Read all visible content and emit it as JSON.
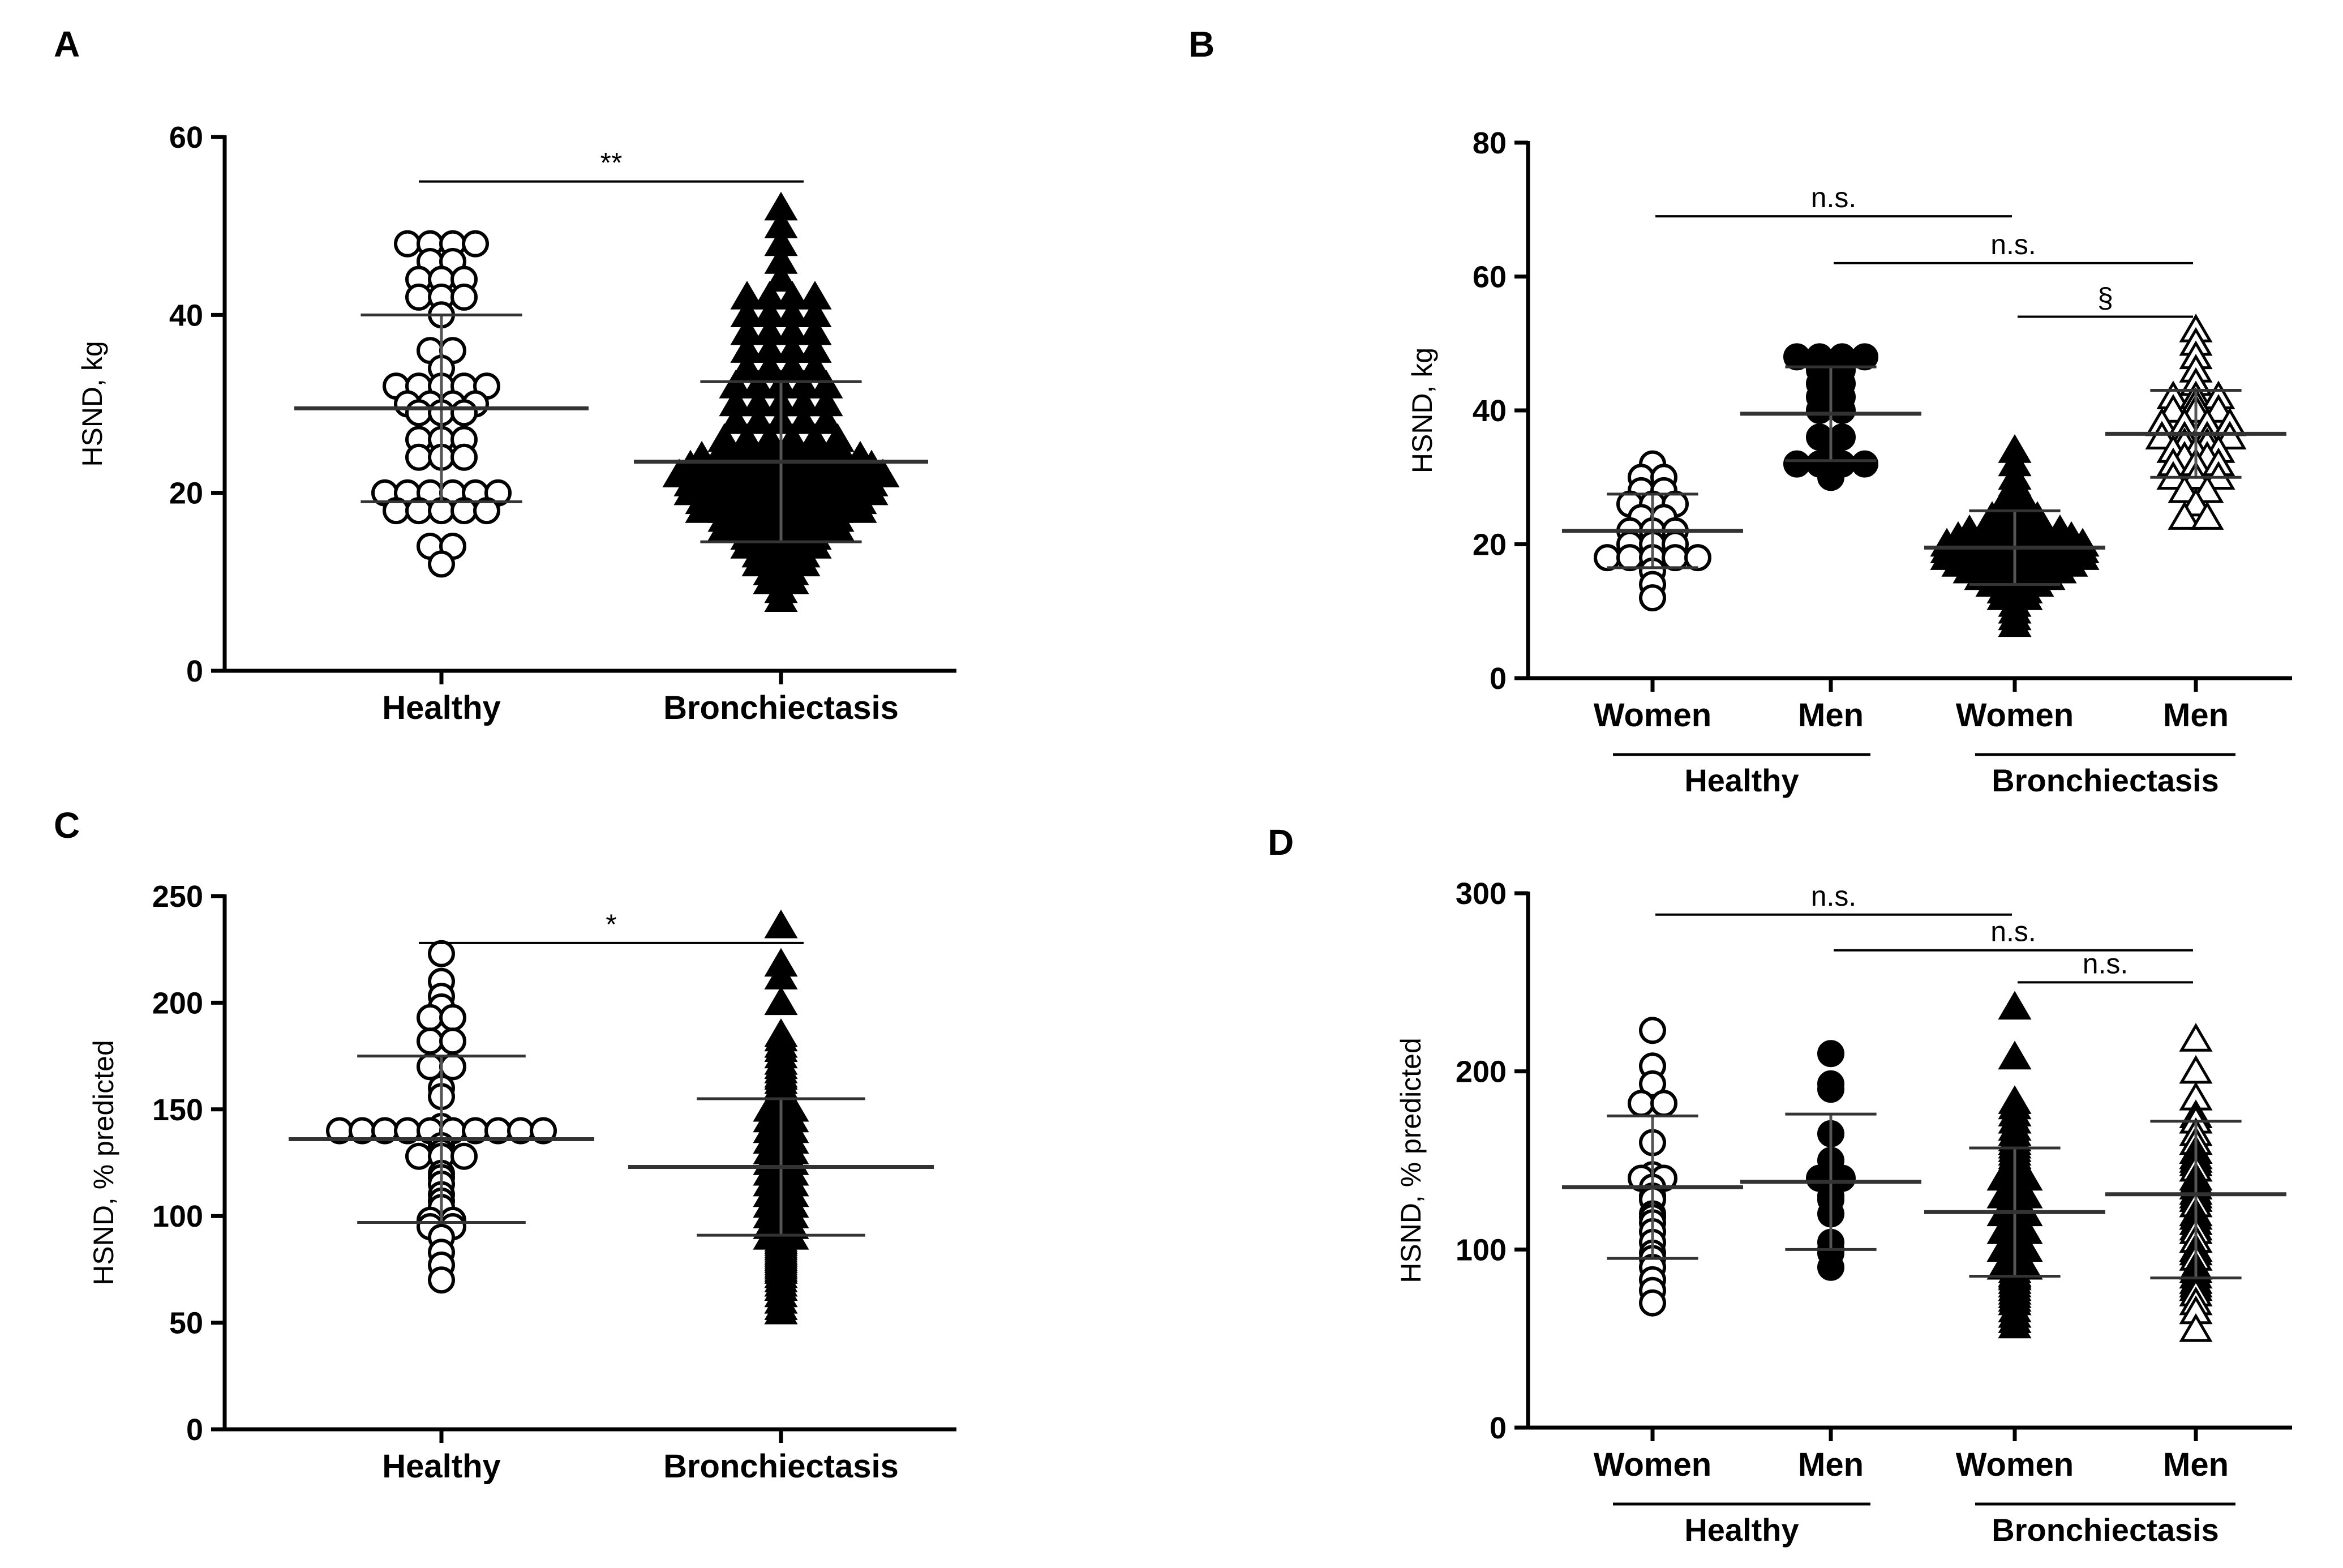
{
  "chart_data": [
    {
      "panel": "A",
      "type": "scatter",
      "subtype": "dot-plot",
      "ylabel": "HSND, kg",
      "ylim": [
        0,
        60
      ],
      "yticks": [
        0,
        20,
        40,
        60
      ],
      "categories": [
        "Healthy",
        "Bronchiectasis"
      ],
      "groups": [
        {
          "name": "Healthy",
          "marker": "circle-open",
          "values": [
            48,
            48,
            48,
            48,
            46,
            46,
            44,
            44,
            44,
            42,
            42,
            42,
            40,
            36,
            36,
            34,
            32,
            32,
            32,
            32,
            32,
            30,
            30,
            30,
            30,
            29,
            29,
            29,
            26,
            26,
            26,
            24,
            24,
            24,
            20,
            20,
            20,
            20,
            20,
            20,
            18,
            18,
            18,
            18,
            18,
            14,
            14,
            12
          ],
          "mean": 29.5,
          "sd_upper": 40,
          "sd_lower": 19
        },
        {
          "name": "Bronchiectasis",
          "marker": "triangle-filled",
          "values": [
            52,
            50,
            48,
            46,
            44,
            42,
            42,
            42,
            42,
            40,
            40,
            40,
            40,
            38,
            38,
            38,
            38,
            36,
            36,
            36,
            36,
            34,
            34,
            34,
            34,
            32,
            32,
            32,
            32,
            32,
            30,
            30,
            30,
            30,
            30,
            28,
            28,
            28,
            28,
            28,
            26,
            26,
            26,
            26,
            26,
            26,
            25,
            25,
            25,
            25,
            25,
            25,
            24,
            24,
            24,
            24,
            24,
            24,
            24,
            24,
            23,
            23,
            23,
            23,
            23,
            23,
            23,
            23,
            23,
            22,
            22,
            22,
            22,
            22,
            22,
            22,
            22,
            22,
            22,
            21,
            21,
            21,
            21,
            21,
            21,
            21,
            21,
            21,
            20,
            20,
            20,
            20,
            20,
            20,
            20,
            20,
            20,
            19,
            19,
            19,
            19,
            19,
            19,
            19,
            19,
            18,
            18,
            18,
            18,
            18,
            18,
            18,
            18,
            17,
            17,
            17,
            17,
            17,
            17,
            16,
            16,
            16,
            16,
            16,
            16,
            15,
            15,
            15,
            15,
            14,
            14,
            14,
            14,
            13,
            13,
            13,
            12,
            12,
            12,
            11,
            11,
            10,
            10,
            9,
            8
          ],
          "mean": 23.5,
          "sd_upper": 32.5,
          "sd_lower": 14.5
        }
      ],
      "significance": [
        {
          "label": "**",
          "from": 0,
          "to": 1,
          "y": 55
        }
      ]
    },
    {
      "panel": "B",
      "type": "scatter",
      "subtype": "dot-plot",
      "ylabel": "HSND, kg",
      "ylim": [
        0,
        80
      ],
      "yticks": [
        0,
        20,
        40,
        60,
        80
      ],
      "categories": [
        "Women",
        "Men",
        "Women",
        "Men"
      ],
      "category_groups": [
        {
          "label": "Healthy",
          "from": 0,
          "to": 1
        },
        {
          "label": "Bronchiectasis",
          "from": 2,
          "to": 3
        }
      ],
      "groups": [
        {
          "name": "Healthy Women",
          "marker": "circle-open",
          "values": [
            32,
            30,
            30,
            28,
            28,
            26,
            26,
            26,
            24,
            24,
            22,
            22,
            22,
            20,
            20,
            20,
            18,
            18,
            18,
            18,
            18,
            16,
            14,
            12
          ],
          "mean": 22,
          "sd_upper": 27.5,
          "sd_lower": 16.5
        },
        {
          "name": "Healthy Men",
          "marker": "circle-filled",
          "values": [
            48,
            48,
            48,
            48,
            46,
            46,
            44,
            44,
            42,
            42,
            40,
            40,
            36,
            36,
            34,
            32,
            32,
            32,
            32,
            30
          ],
          "mean": 39.5,
          "sd_upper": 46.5,
          "sd_lower": 32.5
        },
        {
          "name": "Bronchiectasis Women",
          "marker": "triangle-filled",
          "values": [
            34,
            32,
            30,
            29,
            28,
            27,
            26,
            26,
            25,
            25,
            24,
            24,
            24,
            23,
            23,
            23,
            22,
            22,
            22,
            22,
            22,
            21,
            21,
            21,
            21,
            21,
            21,
            20,
            20,
            20,
            20,
            20,
            20,
            20,
            19,
            19,
            19,
            19,
            19,
            19,
            19,
            18,
            18,
            18,
            18,
            18,
            18,
            18,
            17,
            17,
            17,
            17,
            17,
            17,
            16,
            16,
            16,
            16,
            16,
            15,
            15,
            15,
            15,
            14,
            14,
            14,
            13,
            13,
            12,
            12,
            11,
            10,
            9,
            8
          ],
          "mean": 19.5,
          "sd_upper": 25,
          "sd_lower": 14
        },
        {
          "name": "Bronchiectasis Men",
          "marker": "triangle-open",
          "values": [
            52,
            50,
            48,
            46,
            44,
            42,
            42,
            42,
            41,
            40,
            40,
            40,
            38,
            38,
            38,
            38,
            36,
            36,
            36,
            36,
            35,
            35,
            34,
            34,
            34,
            33,
            33,
            32,
            32,
            32,
            30,
            30,
            30,
            28,
            28,
            26,
            24,
            24
          ],
          "mean": 36.5,
          "sd_upper": 43,
          "sd_lower": 30
        }
      ],
      "significance": [
        {
          "label": "n.s.",
          "from": 0,
          "to": 2,
          "y": 69
        },
        {
          "label": "n.s.",
          "from": 1,
          "to": 3,
          "y": 62
        },
        {
          "label": "§",
          "from": 2,
          "to": 3,
          "y": 54
        }
      ]
    },
    {
      "panel": "C",
      "type": "scatter",
      "subtype": "dot-plot",
      "ylabel": "HSND, % predicted",
      "ylim": [
        0,
        250
      ],
      "yticks": [
        0,
        50,
        100,
        150,
        200,
        250
      ],
      "categories": [
        "Healthy",
        "Bronchiectasis"
      ],
      "groups": [
        {
          "name": "Healthy",
          "marker": "circle-open",
          "values": [
            223,
            210,
            203,
            198,
            193,
            193,
            182,
            182,
            170,
            170,
            160,
            156,
            142,
            140,
            140,
            140,
            140,
            140,
            140,
            140,
            140,
            140,
            140,
            133,
            130,
            128,
            128,
            128,
            120,
            118,
            115,
            110,
            107,
            104,
            98,
            98,
            95,
            95,
            90,
            83,
            77,
            70
          ],
          "mean": 136,
          "sd_upper": 175,
          "sd_lower": 97
        },
        {
          "name": "Bronchiectasis",
          "marker": "triangle-filled",
          "values": [
            236,
            218,
            212,
            200,
            185,
            183,
            180,
            178,
            175,
            172,
            170,
            168,
            166,
            165,
            163,
            161,
            160,
            158,
            157,
            156,
            155,
            154,
            153,
            152,
            151,
            150,
            150,
            149,
            148,
            147,
            146,
            145,
            145,
            144,
            143,
            142,
            141,
            140,
            140,
            139,
            138,
            137,
            136,
            135,
            135,
            134,
            133,
            132,
            131,
            130,
            130,
            129,
            128,
            127,
            126,
            125,
            125,
            124,
            123,
            122,
            121,
            120,
            120,
            119,
            118,
            117,
            116,
            115,
            115,
            114,
            113,
            112,
            111,
            110,
            110,
            109,
            108,
            107,
            106,
            105,
            105,
            104,
            103,
            102,
            101,
            100,
            100,
            99,
            98,
            97,
            96,
            95,
            95,
            94,
            93,
            92,
            91,
            90,
            90,
            89,
            88,
            87,
            86,
            85,
            84,
            83,
            82,
            81,
            80,
            79,
            78,
            77,
            76,
            75,
            74,
            72,
            70,
            68,
            66,
            63,
            60,
            57,
            55
          ],
          "mean": 123,
          "sd_upper": 155,
          "sd_lower": 91
        }
      ],
      "significance": [
        {
          "label": "*",
          "from": 0,
          "to": 1,
          "y": 228
        }
      ]
    },
    {
      "panel": "D",
      "type": "scatter",
      "subtype": "dot-plot",
      "ylabel": "HSND, % predicted",
      "ylim": [
        0,
        300
      ],
      "yticks": [
        0,
        100,
        200,
        300
      ],
      "categories": [
        "Women",
        "Men",
        "Women",
        "Men"
      ],
      "category_groups": [
        {
          "label": "Healthy",
          "from": 0,
          "to": 1
        },
        {
          "label": "Bronchiectasis",
          "from": 2,
          "to": 3
        }
      ],
      "groups": [
        {
          "name": "Healthy Women",
          "marker": "circle-open",
          "values": [
            223,
            203,
            193,
            182,
            182,
            160,
            142,
            140,
            140,
            135,
            130,
            128,
            120,
            118,
            115,
            110,
            104,
            98,
            95,
            90,
            83,
            77,
            70
          ],
          "mean": 135,
          "sd_upper": 175,
          "sd_lower": 95
        },
        {
          "name": "Healthy Men",
          "marker": "circle-filled",
          "values": [
            210,
            193,
            190,
            165,
            150,
            140,
            140,
            138,
            130,
            128,
            120,
            104,
            100,
            98,
            90
          ],
          "mean": 138,
          "sd_upper": 176,
          "sd_lower": 100
        },
        {
          "name": "Bronchiectasis Women",
          "marker": "triangle-filled",
          "values": [
            236,
            208,
            183,
            180,
            176,
            172,
            168,
            165,
            162,
            160,
            158,
            156,
            154,
            152,
            150,
            148,
            146,
            145,
            144,
            142,
            140,
            140,
            138,
            136,
            135,
            134,
            132,
            130,
            130,
            128,
            126,
            125,
            124,
            122,
            120,
            120,
            118,
            116,
            115,
            114,
            112,
            110,
            110,
            108,
            106,
            105,
            104,
            102,
            100,
            100,
            98,
            96,
            95,
            94,
            92,
            90,
            90,
            88,
            86,
            85,
            84,
            82,
            80,
            78,
            76,
            74,
            72,
            70,
            66,
            63,
            60,
            57
          ],
          "mean": 121,
          "sd_upper": 157,
          "sd_lower": 85
        },
        {
          "name": "Bronchiectasis Men",
          "marker": "triangle-open",
          "values": [
            218,
            200,
            185,
            175,
            172,
            165,
            160,
            155,
            152,
            150,
            148,
            145,
            140,
            138,
            135,
            132,
            130,
            128,
            125,
            120,
            118,
            115,
            112,
            110,
            105,
            100,
            98,
            95,
            90,
            88,
            85,
            82,
            80,
            78,
            75,
            70,
            65,
            55
          ],
          "mean": 131,
          "sd_upper": 172,
          "sd_lower": 84
        }
      ],
      "significance": [
        {
          "label": "n.s.",
          "from": 0,
          "to": 2,
          "y": 288
        },
        {
          "label": "n.s.",
          "from": 1,
          "to": 3,
          "y": 268
        },
        {
          "label": "n.s.",
          "from": 2,
          "to": 3,
          "y": 250
        }
      ]
    }
  ]
}
